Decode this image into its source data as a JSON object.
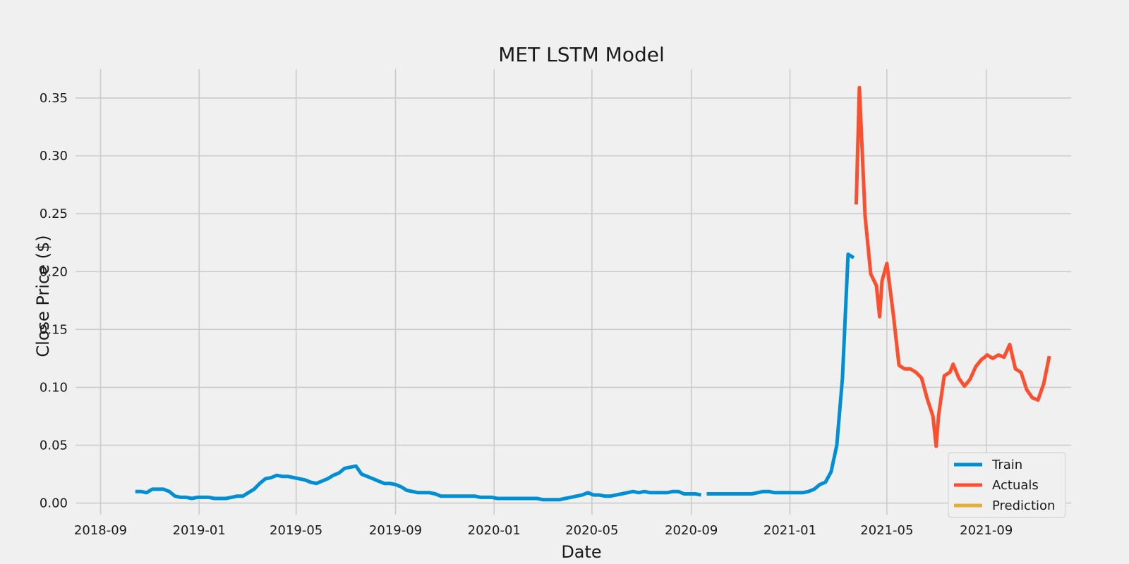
{
  "chart_data": {
    "type": "line",
    "title": "MET LSTM Model",
    "xlabel": "Date",
    "ylabel": "Close Price ($)",
    "x_type": "date",
    "xlim": [
      "2018-08-01",
      "2021-12-15"
    ],
    "ylim": [
      -0.01,
      0.375
    ],
    "grid": true,
    "legend_position": "bottom-right",
    "x_ticks": [
      {
        "value": "2018-09-01",
        "label": "2018-09"
      },
      {
        "value": "2019-01-01",
        "label": "2019-01"
      },
      {
        "value": "2019-05-01",
        "label": "2019-05"
      },
      {
        "value": "2019-09-01",
        "label": "2019-09"
      },
      {
        "value": "2020-01-01",
        "label": "2020-01"
      },
      {
        "value": "2020-05-01",
        "label": "2020-05"
      },
      {
        "value": "2020-09-01",
        "label": "2020-09"
      },
      {
        "value": "2021-01-01",
        "label": "2021-01"
      },
      {
        "value": "2021-05-01",
        "label": "2021-05"
      },
      {
        "value": "2021-09-01",
        "label": "2021-09"
      }
    ],
    "y_ticks": [
      {
        "value": 0.0,
        "label": "0.00"
      },
      {
        "value": 0.05,
        "label": "0.05"
      },
      {
        "value": 0.1,
        "label": "0.10"
      },
      {
        "value": 0.15,
        "label": "0.15"
      },
      {
        "value": 0.2,
        "label": "0.20"
      },
      {
        "value": 0.25,
        "label": "0.25"
      },
      {
        "value": 0.3,
        "label": "0.30"
      },
      {
        "value": 0.35,
        "label": "0.35"
      }
    ],
    "series": [
      {
        "name": "Train",
        "color": "#008fd5",
        "segments": [
          {
            "x": [
              "2018-10-14",
              "2018-10-21",
              "2018-10-28",
              "2018-11-04",
              "2018-11-11",
              "2018-11-18",
              "2018-11-25",
              "2018-12-02",
              "2018-12-09",
              "2018-12-16",
              "2018-12-23",
              "2018-12-30",
              "2019-01-06",
              "2019-01-13",
              "2019-01-20",
              "2019-01-27",
              "2019-02-03",
              "2019-02-10",
              "2019-02-17",
              "2019-02-24",
              "2019-03-03",
              "2019-03-10",
              "2019-03-17",
              "2019-03-24",
              "2019-03-31",
              "2019-04-07",
              "2019-04-14",
              "2019-04-21",
              "2019-04-28",
              "2019-05-05",
              "2019-05-12",
              "2019-05-19",
              "2019-05-26",
              "2019-06-02",
              "2019-06-09",
              "2019-06-16",
              "2019-06-23",
              "2019-06-30",
              "2019-07-07",
              "2019-07-14",
              "2019-07-21",
              "2019-07-28",
              "2019-08-04",
              "2019-08-11",
              "2019-08-18",
              "2019-08-25",
              "2019-09-01",
              "2019-09-08",
              "2019-09-15",
              "2019-09-22",
              "2019-09-29",
              "2019-10-06",
              "2019-10-13",
              "2019-10-20",
              "2019-10-27",
              "2019-11-03",
              "2019-11-10",
              "2019-11-17",
              "2019-11-24",
              "2019-12-01",
              "2019-12-08",
              "2019-12-15",
              "2019-12-22",
              "2019-12-29",
              "2020-01-05",
              "2020-01-12",
              "2020-01-19",
              "2020-01-26",
              "2020-02-02",
              "2020-02-09",
              "2020-02-16",
              "2020-02-23",
              "2020-03-01",
              "2020-03-08",
              "2020-03-15",
              "2020-03-22",
              "2020-03-29",
              "2020-04-05",
              "2020-04-12",
              "2020-04-19",
              "2020-04-26",
              "2020-05-03",
              "2020-05-10",
              "2020-05-17",
              "2020-05-24",
              "2020-05-31",
              "2020-06-07",
              "2020-06-14",
              "2020-06-21",
              "2020-06-28",
              "2020-07-05",
              "2020-07-12",
              "2020-07-19",
              "2020-07-26",
              "2020-08-02",
              "2020-08-09",
              "2020-08-16",
              "2020-08-23",
              "2020-08-30",
              "2020-09-06",
              "2020-09-13"
            ],
            "y": [
              0.01,
              0.01,
              0.009,
              0.012,
              0.012,
              0.012,
              0.01,
              0.006,
              0.005,
              0.005,
              0.004,
              0.005,
              0.005,
              0.005,
              0.004,
              0.004,
              0.004,
              0.005,
              0.006,
              0.006,
              0.009,
              0.012,
              0.017,
              0.021,
              0.022,
              0.024,
              0.023,
              0.023,
              0.022,
              0.021,
              0.02,
              0.018,
              0.017,
              0.019,
              0.021,
              0.024,
              0.026,
              0.03,
              0.031,
              0.032,
              0.025,
              0.023,
              0.021,
              0.019,
              0.017,
              0.017,
              0.016,
              0.014,
              0.011,
              0.01,
              0.009,
              0.009,
              0.009,
              0.008,
              0.006,
              0.006,
              0.006,
              0.006,
              0.006,
              0.006,
              0.006,
              0.005,
              0.005,
              0.005,
              0.004,
              0.004,
              0.004,
              0.004,
              0.004,
              0.004,
              0.004,
              0.004,
              0.003,
              0.003,
              0.003,
              0.003,
              0.004,
              0.005,
              0.006,
              0.007,
              0.009,
              0.007,
              0.007,
              0.006,
              0.006,
              0.007,
              0.008,
              0.009,
              0.01,
              0.009,
              0.01,
              0.009,
              0.009,
              0.009,
              0.009,
              0.01,
              0.01,
              0.008,
              0.008,
              0.008,
              0.007
            ]
          },
          {
            "x": [
              "2020-09-20",
              "2020-09-27",
              "2020-10-04",
              "2020-10-11",
              "2020-10-18",
              "2020-10-25",
              "2020-11-01",
              "2020-11-08",
              "2020-11-15",
              "2020-11-22",
              "2020-11-29",
              "2020-12-06",
              "2020-12-13",
              "2020-12-20",
              "2020-12-27",
              "2021-01-03",
              "2021-01-10",
              "2021-01-17",
              "2021-01-24",
              "2021-01-31",
              "2021-02-07",
              "2021-02-14",
              "2021-02-21",
              "2021-02-28",
              "2021-03-07",
              "2021-03-14",
              "2021-03-21"
            ],
            "y": [
              0.008,
              0.008,
              0.008,
              0.008,
              0.008,
              0.008,
              0.008,
              0.008,
              0.008,
              0.009,
              0.01,
              0.01,
              0.009,
              0.009,
              0.009,
              0.009,
              0.009,
              0.009,
              0.01,
              0.012,
              0.016,
              0.018,
              0.027,
              0.05,
              0.108,
              0.215,
              0.212
            ]
          }
        ]
      },
      {
        "name": "Actuals",
        "color": "#fc4f30",
        "segments": [
          {
            "x": [
              "2021-03-24",
              "2021-03-28",
              "2021-04-04",
              "2021-04-11",
              "2021-04-18",
              "2021-04-22",
              "2021-04-25",
              "2021-05-01",
              "2021-05-09",
              "2021-05-16",
              "2021-05-23",
              "2021-05-30",
              "2021-06-06",
              "2021-06-13",
              "2021-06-20",
              "2021-06-27",
              "2021-07-01",
              "2021-07-04",
              "2021-07-11",
              "2021-07-18",
              "2021-07-22",
              "2021-07-29",
              "2021-08-05",
              "2021-08-12",
              "2021-08-19",
              "2021-08-26",
              "2021-08-30",
              "2021-09-02",
              "2021-09-09",
              "2021-09-16",
              "2021-09-23",
              "2021-09-30",
              "2021-10-07",
              "2021-10-14",
              "2021-10-21",
              "2021-10-28",
              "2021-11-04",
              "2021-11-11",
              "2021-11-18"
            ],
            "y": [
              0.258,
              0.359,
              0.248,
              0.198,
              0.188,
              0.161,
              0.192,
              0.207,
              0.163,
              0.119,
              0.116,
              0.116,
              0.113,
              0.108,
              0.09,
              0.075,
              0.049,
              0.076,
              0.11,
              0.113,
              0.12,
              0.108,
              0.101,
              0.107,
              0.118,
              0.124,
              0.126,
              0.128,
              0.125,
              0.128,
              0.126,
              0.137,
              0.116,
              0.113,
              0.098,
              0.091,
              0.089,
              0.103,
              0.127
            ]
          }
        ]
      },
      {
        "name": "Prediction",
        "color": "#e5ae38",
        "segments": []
      }
    ]
  }
}
